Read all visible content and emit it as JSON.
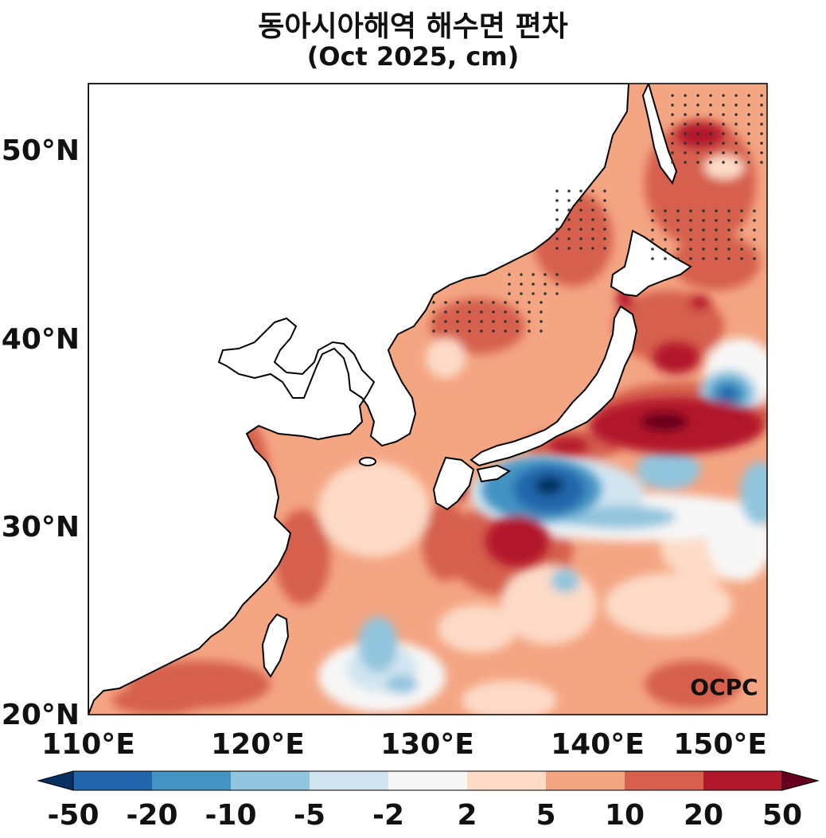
{
  "title": "동아시아해역 해수면 편차",
  "subtitle": "(Oct 2025, cm)",
  "logo_text": "OCPC",
  "axes": {
    "lon_ticks": [
      "110°E",
      "120°E",
      "130°E",
      "140°E",
      "150°E"
    ],
    "lat_ticks": [
      "20°N",
      "30°N",
      "40°N",
      "50°N"
    ],
    "lon_range": [
      110,
      150
    ],
    "lat_range": [
      20,
      53.5
    ]
  },
  "colorbar": {
    "ticks": [
      "-50",
      "-20",
      "-10",
      "-5",
      "-2",
      "2",
      "5",
      "10",
      "20",
      "50"
    ],
    "colors": [
      "#2166ac",
      "#4393c3",
      "#92c5de",
      "#d1e5f0",
      "#f7f7f7",
      "#fddbc7",
      "#f4a582",
      "#d6604d",
      "#b2182b"
    ],
    "under_color": "#053061",
    "over_color": "#67001f"
  },
  "legend": {
    "stippling": "dots indicate significant anomalies"
  }
}
